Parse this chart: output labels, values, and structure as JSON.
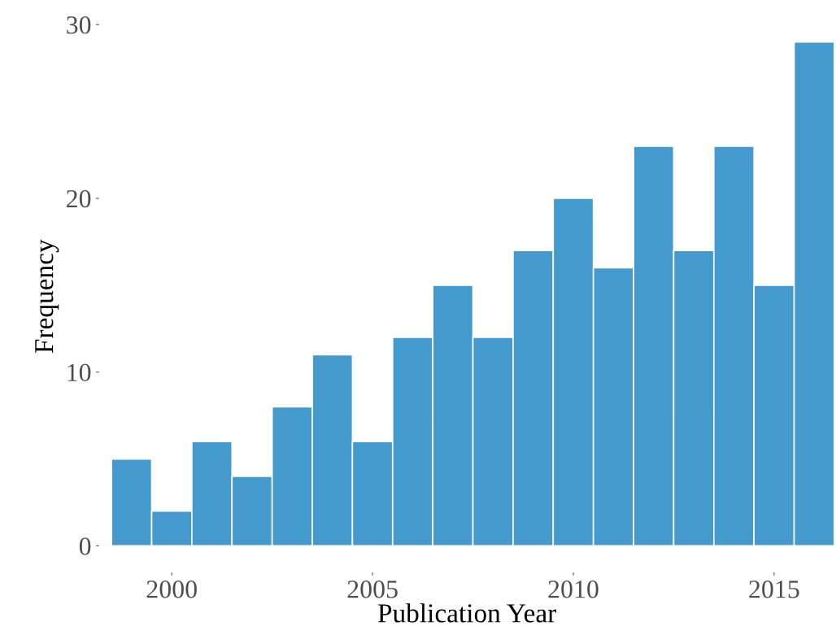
{
  "chart_data": {
    "type": "histogram",
    "xlabel": "Publication Year",
    "ylabel": "Frequency",
    "bins": [
      1998.5,
      1999.5,
      2000.5,
      2001.5,
      2002.5,
      2003.5,
      2004.5,
      2005.5,
      2006.5,
      2007.5,
      2008.5,
      2009.5,
      2010.5,
      2011.5,
      2012.5,
      2013.5,
      2014.5,
      2015.5,
      2016.5
    ],
    "values": [
      5,
      2,
      6,
      4,
      8,
      11,
      6,
      12,
      15,
      12,
      17,
      20,
      16,
      23,
      17,
      23,
      15,
      29
    ],
    "color": "#4499cd",
    "xlim": [
      1998.2,
      2016.5
    ],
    "xticks": [
      2000,
      2005,
      2010,
      2015
    ],
    "ylim": [
      -1.5,
      30.2
    ],
    "yticks": [
      0,
      10,
      20,
      30
    ],
    "grid": false,
    "legend": false
  }
}
